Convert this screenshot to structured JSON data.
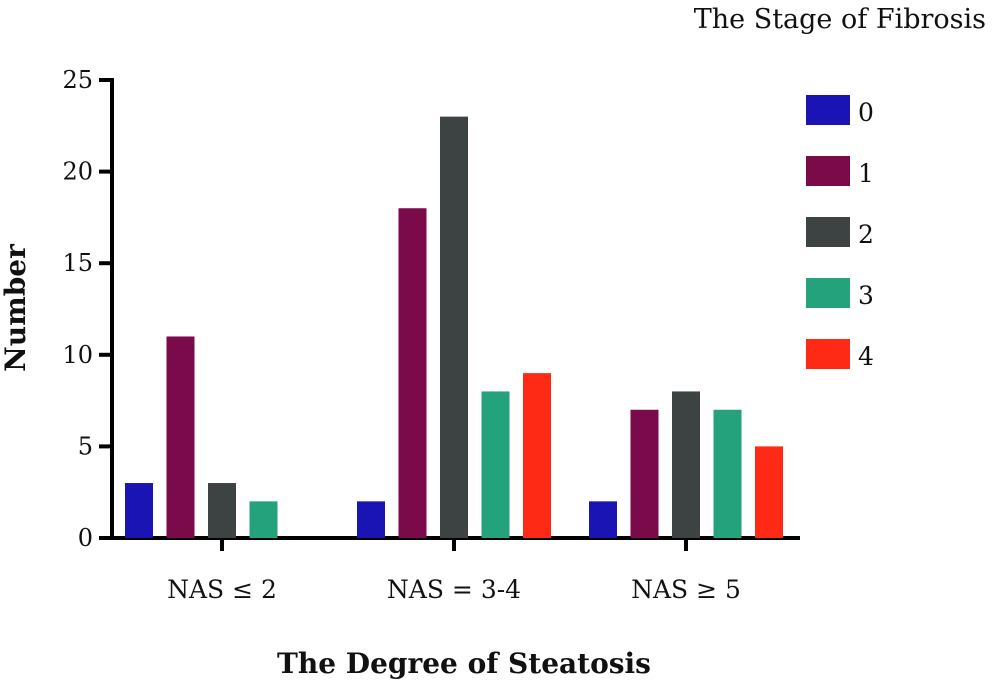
{
  "chart_data": {
    "type": "bar",
    "title": "",
    "xlabel": "The Degree of Steatosis",
    "ylabel": "Number",
    "ylim": [
      0,
      25
    ],
    "yticks": [
      "0",
      "5",
      "10",
      "15",
      "20",
      "25"
    ],
    "categories": [
      "NAS ≤ 2",
      "NAS = 3-4",
      "NAS ≥ 5"
    ],
    "legend": {
      "title": "The Stage of Fibrosis",
      "placement": "top-right"
    },
    "series": [
      {
        "name": "0",
        "color": "#1b14b4",
        "values": [
          3,
          2,
          2
        ]
      },
      {
        "name": "1",
        "color": "#7a0a4a",
        "values": [
          11,
          18,
          7
        ]
      },
      {
        "name": "2",
        "color": "#3d4343",
        "values": [
          3,
          23,
          8
        ]
      },
      {
        "name": "3",
        "color": "#23a27c",
        "values": [
          2,
          8,
          7
        ]
      },
      {
        "name": "4",
        "color": "#fe2a16",
        "values": [
          0,
          9,
          5
        ]
      }
    ],
    "grid": false
  }
}
